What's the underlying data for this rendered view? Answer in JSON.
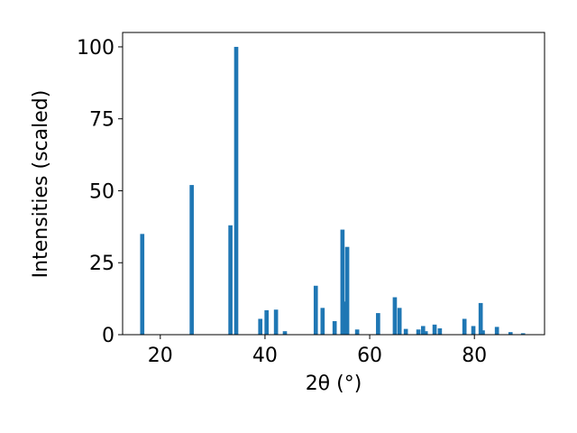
{
  "chart_data": {
    "type": "bar",
    "xlabel": "2θ (°)",
    "ylabel": "Intensities (scaled)",
    "x": [
      16.55,
      26.0,
      33.4,
      34.5,
      39.1,
      40.3,
      42.1,
      43.8,
      49.7,
      51.0,
      53.3,
      54.8,
      55.2,
      55.7,
      57.6,
      61.6,
      64.8,
      65.7,
      66.9,
      69.3,
      70.2,
      70.7,
      72.4,
      73.4,
      78.1,
      79.8,
      81.2,
      81.6,
      84.3,
      86.9,
      89.3
    ],
    "values": [
      35,
      52,
      38,
      100,
      5.5,
      8.5,
      8.7,
      1.2,
      17,
      9.3,
      4.7,
      36.5,
      11.5,
      30.5,
      1.8,
      7.5,
      13,
      9.3,
      2,
      1.8,
      3,
      1.2,
      3.5,
      2.2,
      5.5,
      3,
      11,
      1.5,
      2.7,
      0.9,
      0.5
    ],
    "color": "#1f77b4",
    "xlim": [
      12.8,
      93.4
    ],
    "ylim": [
      0,
      105
    ],
    "xticks": [
      20,
      40,
      60,
      80
    ],
    "yticks": [
      0,
      25,
      50,
      75,
      100
    ]
  }
}
